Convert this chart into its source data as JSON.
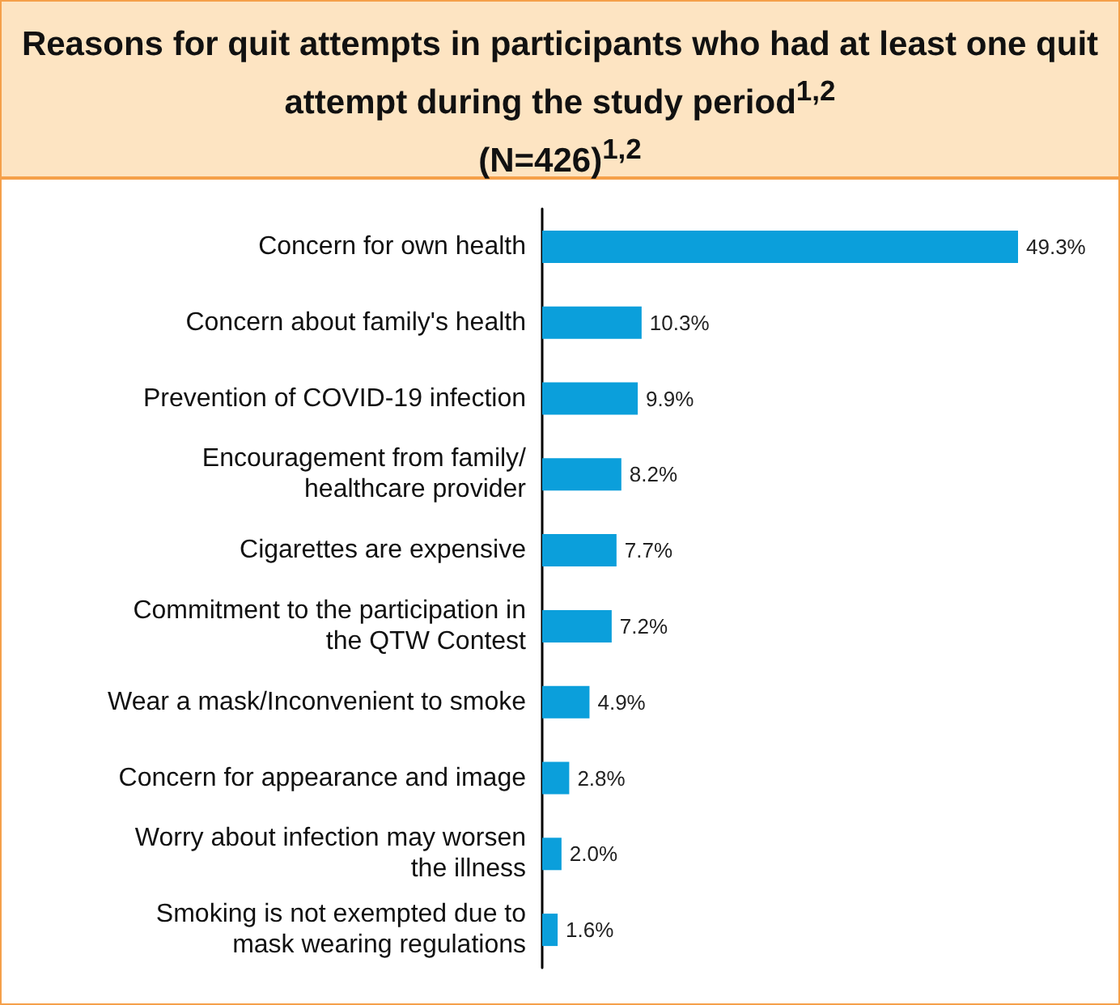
{
  "chart_data": {
    "type": "bar",
    "orientation": "horizontal",
    "title": "Reasons for quit attempts in participants who had at least one quit attempt during the study period$^{1,2}$\n(N=426)$^{1,2}$",
    "categories": [
      "Concern for own health",
      "Concern about family's health",
      "Prevention of COVID-19 infection",
      "Encouragement from family/\nhealthcare provider",
      "Cigarettes are expensive",
      "Commitment to the participation in\nthe QTW Contest",
      "Wear a mask/Inconvenient to smoke",
      "Concern for appearance and image",
      "Worry about infection may worsen\nthe illness",
      "Smoking is not exempted due to\nmask wearing regulations"
    ],
    "values": [
      49.3,
      10.3,
      9.9,
      8.2,
      7.7,
      7.2,
      4.9,
      2.8,
      2.0,
      1.6
    ],
    "value_labels": [
      "49.3%",
      "10.3%",
      "9.9%",
      "8.2%",
      "7.7%",
      "7.2%",
      "4.9%",
      "2.8%",
      "2.0%",
      "1.6%"
    ],
    "color": "#0b9fdb",
    "grid": false
  }
}
